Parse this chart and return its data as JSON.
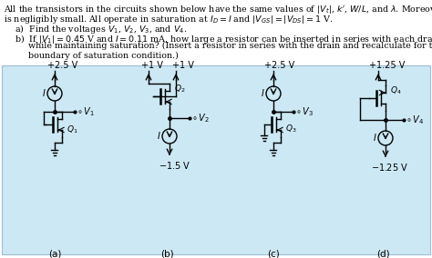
{
  "fig_w": 4.74,
  "fig_h": 2.84,
  "dpi": 100,
  "text_lines": [
    "All the transistors in the circuits shown below have the same values of $|V_t|$, $k'$, $W/L$, and $\\lambda$. Moreover, $\\lambda$",
    "is negligibly small. All operate in saturation at $I_D = I$ and $|V_{GS}| = |V_{DS}| = 1$ V.",
    "    a)  Find the voltages $V_1$, $V_2$, $V_3$, and $V_4$.",
    "    b)  If $|V_1| = 0.45$ V and $I = 0.11$ mA, how large a resistor can be inserted in series with each drain",
    "         while maintaining saturation? (Insert a resistor in series with the drain and recalculate for the",
    "         boundary of saturation condition.)"
  ],
  "circuit_bg": "#cce8f4",
  "circuit_border": "#9bbfd4"
}
